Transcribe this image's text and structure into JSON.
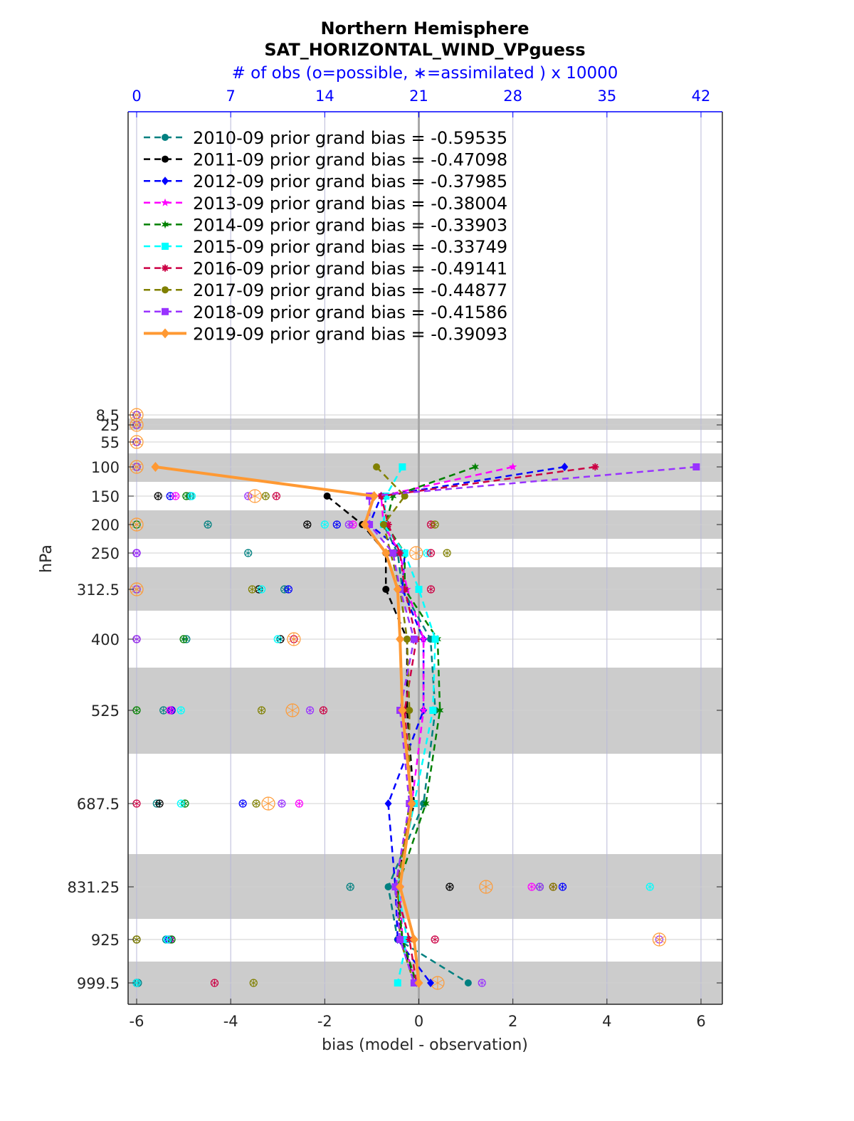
{
  "title": "Northern Hemisphere",
  "subtitle": "SAT_HORIZONTAL_WIND_VPguess",
  "obs_label": "# of obs (o=possible, ∗=assimilated ) x 10000",
  "xlabel": "bias (model - observation)",
  "ylabel": "hPa",
  "chart_data": {
    "type": "line",
    "title": "Northern Hemisphere",
    "subtitle": "SAT_HORIZONTAL_WIND_VPguess",
    "xlabel": "bias (model - observation)",
    "ylabel": "hPa",
    "xlim": [
      -6.0,
      6.5
    ],
    "x_ticks": [
      -6,
      -4,
      -2,
      0,
      2,
      4,
      6
    ],
    "obs_axis_label": "# of obs (o=possible, ∗=assimilated ) x 10000",
    "obs_ticks": [
      0,
      7,
      14,
      21,
      28,
      35,
      42
    ],
    "obs_lim": [
      0,
      43.4
    ],
    "levels": [
      8.5,
      25,
      55,
      100,
      150,
      200,
      250,
      312.5,
      400,
      525,
      687.5,
      831.25,
      925,
      999.5
    ],
    "level_labels": [
      "8.5",
      "25",
      "55",
      "100",
      "150",
      "200",
      "250",
      "312.5",
      "400",
      "525",
      "687.5",
      "831.25",
      "925",
      "999.5"
    ],
    "grid": true,
    "legend_position": "top-left",
    "series": [
      {
        "name": "2010-09 prior grand bias = -0.59535",
        "color": "#008080",
        "marker": "circle",
        "dash": true,
        "bias": [
          null,
          null,
          null,
          null,
          -0.7,
          -0.75,
          -0.45,
          -0.35,
          0.25,
          0.35,
          0.1,
          -0.65,
          -0.45,
          1.05
        ],
        "possible": [
          0,
          0,
          0,
          0,
          4.0,
          5.3,
          8.3,
          11.0,
          3.7,
          2.0,
          1.5,
          15.9,
          2.2,
          0.1
        ],
        "assimilated": [
          0,
          0,
          0,
          0,
          4.0,
          5.3,
          8.3,
          11.0,
          3.7,
          2.0,
          1.5,
          15.9,
          2.2,
          0.1
        ]
      },
      {
        "name": "2011-09 prior grand bias = -0.47098",
        "color": "#000000",
        "marker": "circle",
        "dash": true,
        "bias": [
          null,
          null,
          null,
          null,
          -1.95,
          -1.2,
          -0.7,
          -0.7,
          -0.25,
          -0.25,
          -0.1,
          -0.5,
          -0.35,
          -0.1
        ],
        "possible": [
          0,
          0,
          0,
          0,
          1.6,
          12.7,
          0,
          9.1,
          10.7,
          2.6,
          1.7,
          23.3,
          0,
          0
        ],
        "assimilated": [
          0,
          0,
          0,
          0,
          1.6,
          12.7,
          0,
          9.1,
          10.7,
          2.6,
          1.7,
          23.3,
          0,
          0
        ]
      },
      {
        "name": "2012-09 prior grand bias = -0.37985",
        "color": "#0000ff",
        "marker": "diamond",
        "dash": true,
        "bias": [
          null,
          null,
          null,
          3.1,
          -0.8,
          -1.05,
          -0.3,
          -0.35,
          0.1,
          0.1,
          -0.65,
          -0.5,
          -0.45,
          0.25
        ],
        "possible": [
          0,
          0,
          0,
          0,
          2.5,
          14.9,
          0,
          11.3,
          0,
          2.6,
          7.9,
          31.7,
          2.4,
          0
        ],
        "assimilated": [
          0,
          0,
          0,
          0,
          2.5,
          14.9,
          0,
          11.3,
          0,
          2.6,
          7.9,
          31.7,
          2.4,
          0
        ]
      },
      {
        "name": "2013-09 prior grand bias = -0.38004",
        "color": "#ff00ff",
        "marker": "star",
        "dash": true,
        "bias": [
          null,
          null,
          null,
          2.0,
          -0.8,
          -0.75,
          -0.4,
          -0.25,
          0.1,
          0.1,
          -0.15,
          -0.4,
          -0.35,
          -0.05
        ],
        "possible": [
          0,
          0,
          0,
          0,
          2.9,
          16.1,
          0,
          0,
          0,
          2.5,
          12.1,
          29.4,
          2.5,
          0
        ],
        "assimilated": [
          0,
          0,
          0,
          0,
          2.9,
          16.1,
          0,
          0,
          0,
          2.5,
          12.1,
          29.4,
          2.5,
          0
        ]
      },
      {
        "name": "2014-09 prior grand bias = -0.33903",
        "color": "#008000",
        "marker": "hexagram",
        "dash": true,
        "bias": [
          null,
          null,
          null,
          1.2,
          -0.55,
          -0.7,
          -0.3,
          -0.3,
          0.4,
          0.45,
          0.15,
          -0.45,
          -0.35,
          -0.05
        ],
        "possible": [
          0,
          0,
          0,
          0,
          3.7,
          0,
          19.2,
          0,
          3.5,
          0,
          3.6,
          30.0,
          2.6,
          0
        ],
        "assimilated": [
          0,
          0,
          0,
          0,
          3.7,
          0,
          19.2,
          0,
          3.5,
          0,
          3.6,
          30.0,
          2.6,
          0
        ]
      },
      {
        "name": "2015-09 prior grand bias = -0.33749",
        "color": "#00ffff",
        "marker": "square",
        "dash": true,
        "bias": [
          null,
          null,
          null,
          -0.35,
          -0.7,
          -0.75,
          -0.3,
          0.0,
          0.35,
          0.3,
          -0.1,
          -0.45,
          -0.25,
          -0.45
        ],
        "possible": [
          0,
          0,
          0,
          0,
          4.1,
          14.0,
          21.6,
          9.3,
          10.5,
          3.3,
          3.3,
          38.2,
          2.3,
          0
        ],
        "assimilated": [
          0,
          0,
          0,
          0,
          4.1,
          14.0,
          21.6,
          9.3,
          10.5,
          3.3,
          3.3,
          38.2,
          2.3,
          0
        ]
      },
      {
        "name": "2016-09 prior grand bias = -0.49141",
        "color": "#cc0044",
        "marker": "asterisk",
        "dash": true,
        "bias": [
          null,
          null,
          null,
          3.75,
          -0.8,
          -0.65,
          -0.4,
          -0.3,
          -0.05,
          -0.3,
          -0.15,
          -0.5,
          -0.2,
          -0.05
        ],
        "possible": [
          0,
          0,
          0,
          0,
          10.4,
          21.9,
          21.9,
          21.9,
          11.7,
          13.9,
          0,
          31.0,
          22.2,
          5.8
        ],
        "assimilated": [
          0,
          0,
          0,
          0,
          10.4,
          21.9,
          21.9,
          21.9,
          11.7,
          13.9,
          0,
          31.0,
          22.2,
          5.8
        ]
      },
      {
        "name": "2017-09 prior grand bias = -0.44877",
        "color": "#808000",
        "marker": "circle",
        "dash": true,
        "bias": [
          null,
          null,
          null,
          -0.9,
          -0.3,
          -0.75,
          -0.6,
          -0.4,
          -0.25,
          -0.2,
          -0.2,
          -0.45,
          -0.4,
          -0.1
        ],
        "possible": [
          0,
          0,
          0,
          0,
          9.6,
          22.2,
          23.1,
          8.6,
          0,
          9.3,
          8.9,
          31.0,
          0,
          8.7
        ],
        "assimilated": [
          0,
          0,
          0,
          0,
          9.6,
          22.2,
          23.1,
          8.6,
          0,
          9.3,
          8.9,
          31.0,
          0,
          8.7
        ]
      },
      {
        "name": "2018-09 prior grand bias = -0.41586",
        "color": "#9933ff",
        "marker": "square",
        "dash": true,
        "bias": [
          null,
          null,
          null,
          5.9,
          -1.05,
          -1.05,
          -0.55,
          -0.4,
          -0.1,
          -0.4,
          -0.2,
          -0.5,
          -0.4,
          -0.1
        ],
        "possible": [
          0,
          0,
          0,
          0,
          8.3,
          15.8,
          0,
          0,
          0,
          12.9,
          10.8,
          30.0,
          38.9,
          25.7
        ],
        "assimilated": [
          0,
          0,
          0,
          0,
          8.3,
          15.8,
          0,
          0,
          0,
          12.9,
          10.8,
          30.0,
          38.9,
          25.7
        ]
      },
      {
        "name": "2019-09 prior grand bias = -0.39093",
        "color": "#ff9933",
        "marker": "diamond",
        "dash": false,
        "bias": [
          null,
          null,
          null,
          -5.6,
          -0.95,
          -1.15,
          -0.7,
          -0.45,
          -0.4,
          -0.35,
          -0.15,
          -0.4,
          -0.1,
          0.0
        ],
        "possible": [
          0,
          0,
          0,
          0,
          8.8,
          0,
          20.8,
          0,
          11.7,
          11.6,
          9.8,
          26.0,
          38.9,
          22.4
        ],
        "assimilated": [
          0,
          0,
          0,
          0,
          8.8,
          0,
          20.8,
          0,
          11.7,
          11.6,
          9.8,
          26.0,
          38.0,
          22.4
        ]
      }
    ]
  }
}
